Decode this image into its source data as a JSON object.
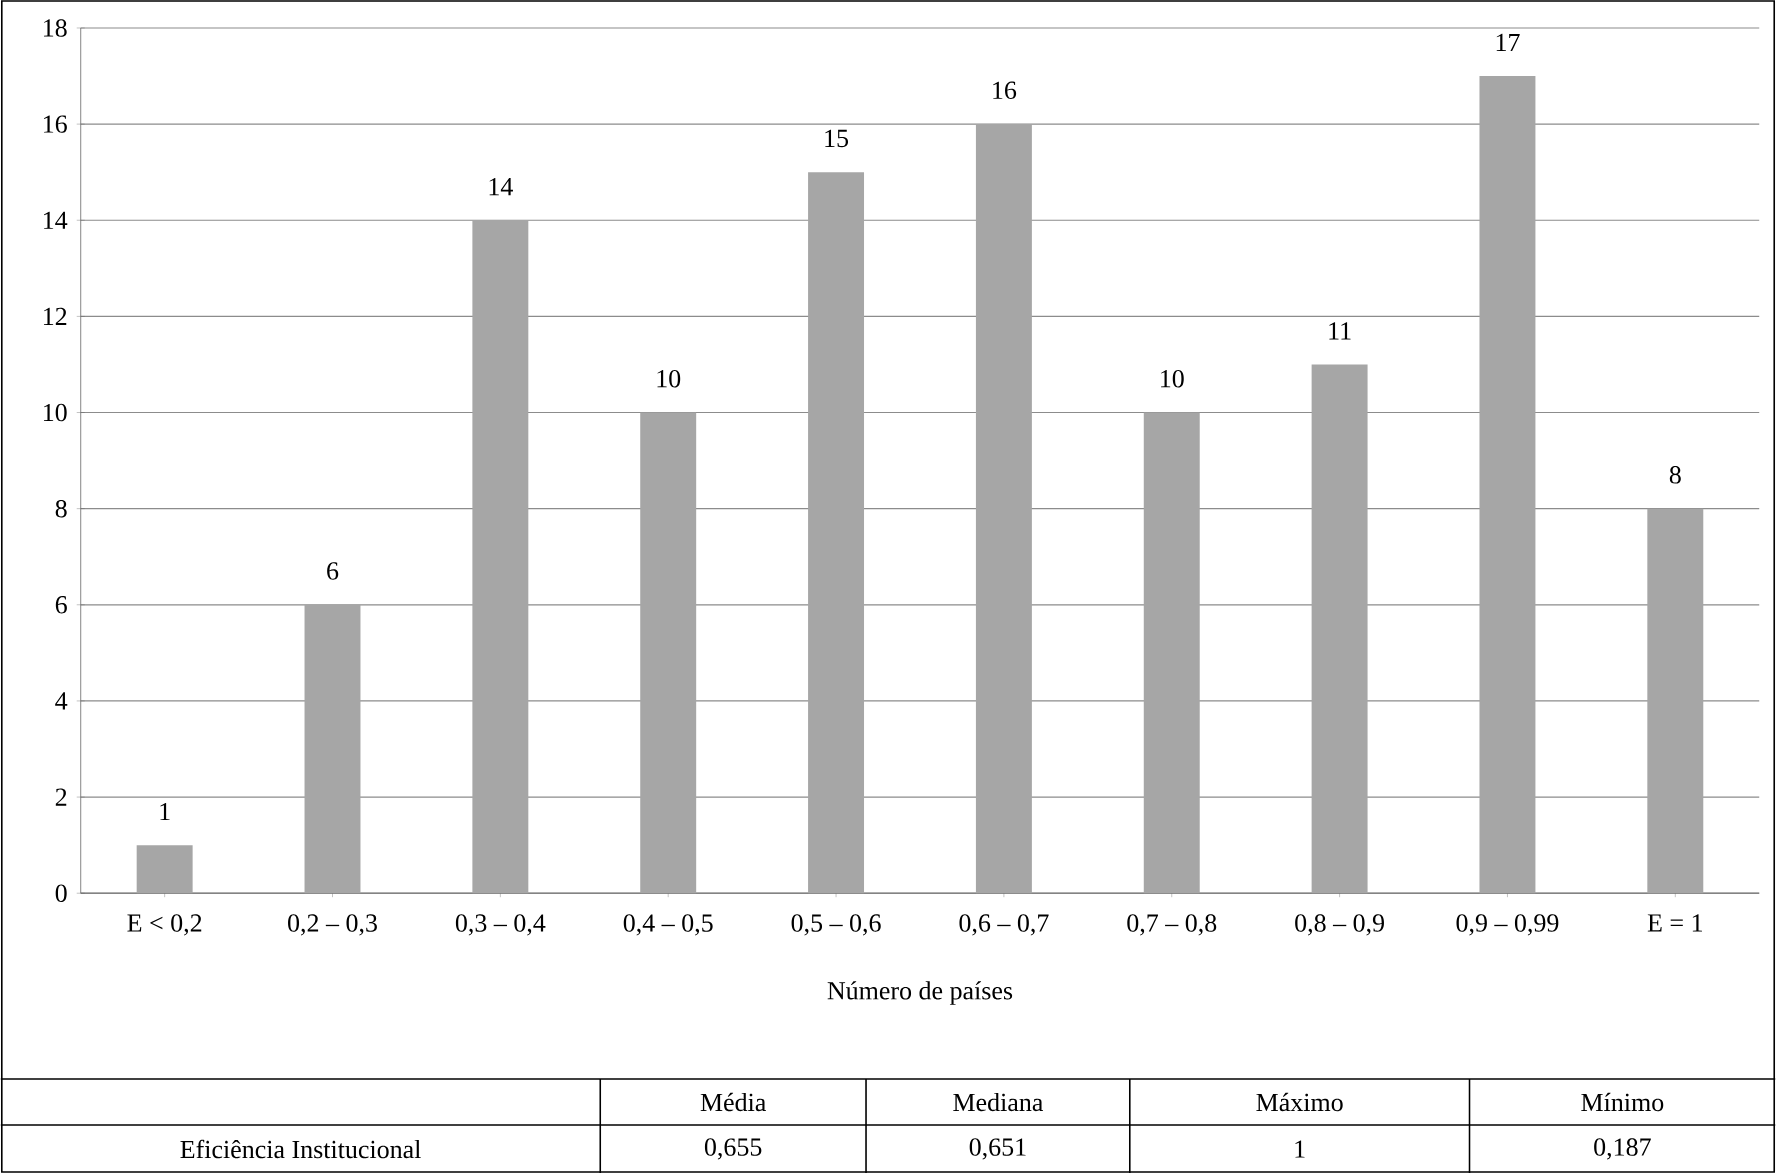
{
  "chart_data": {
    "type": "bar",
    "categories": [
      "E < 0,2",
      "0,2 – 0,3",
      "0,3 – 0,4",
      "0,4 – 0,5",
      "0,5 – 0,6",
      "0,6 – 0,7",
      "0,7 – 0,8",
      "0,8 – 0,9",
      "0,9 – 0,99",
      "E = 1"
    ],
    "values": [
      1,
      6,
      14,
      10,
      15,
      16,
      10,
      11,
      17,
      8
    ],
    "color": "#a6a6a6",
    "xlabel": "Número de países",
    "ylim": [
      0,
      18
    ],
    "yticks": [
      0,
      2,
      4,
      6,
      8,
      10,
      12,
      14,
      16,
      18
    ],
    "grid": "y",
    "data_labels": true,
    "annotations": [
      "Média",
      "Mediana",
      "Máximo",
      "Mínimo",
      "Eficiência Institucional",
      "0,655",
      "0,651",
      "1",
      "0,187"
    ]
  }
}
